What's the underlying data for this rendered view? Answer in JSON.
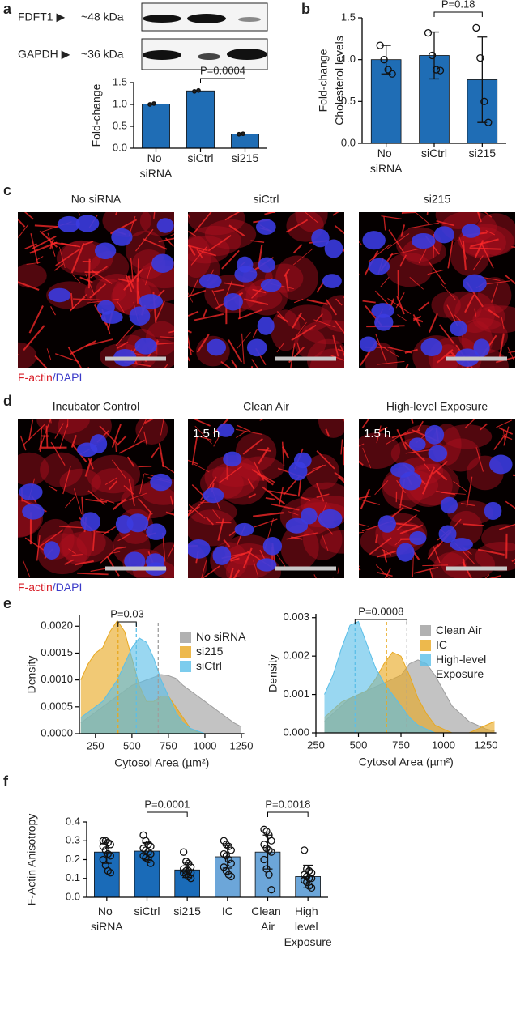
{
  "panel_labels": [
    "a",
    "b",
    "c",
    "d",
    "e",
    "f"
  ],
  "blot": [
    {
      "protein": "FDFT1 ▶",
      "size": "~48 kDa"
    },
    {
      "protein": "GAPDH ▶",
      "size": "~36 kDa"
    }
  ],
  "micrographs": {
    "c": {
      "titles": [
        "No siRNA",
        "siCtrl",
        "si215"
      ],
      "times": [
        null,
        null,
        null
      ],
      "stain": [
        "F-actin",
        "/DAPI"
      ]
    },
    "d": {
      "titles": [
        "Incubator Control",
        "Clean Air",
        "High-level Exposure"
      ],
      "times": [
        null,
        "1.5 h",
        "1.5 h"
      ],
      "stain": [
        "F-actin",
        "/DAPI"
      ]
    }
  },
  "chart_data": [
    {
      "type": "bar",
      "ylabel": "Fold-change",
      "categories": [
        "No siRNA",
        "siCtrl",
        "si215"
      ],
      "values": [
        1.01,
        1.31,
        0.325
      ],
      "color": "#1f6db5",
      "points": [
        [
          1.0,
          1.02
        ],
        [
          1.3,
          1.32
        ],
        [
          0.32,
          0.33
        ]
      ],
      "ylim": [
        0,
        1.5
      ],
      "yticks": [
        {
          "value": 0,
          "label": "0.0"
        },
        {
          "value": 0.5,
          "label": "0.5"
        },
        {
          "value": 1,
          "label": "1.0"
        },
        {
          "value": 1.5,
          "label": "1.5"
        }
      ],
      "annotations": [
        {
          "text": "P=0.0004",
          "between": [
            "siCtrl",
            "si215"
          ]
        }
      ]
    },
    {
      "type": "bar",
      "ylabel": [
        "Fold-change",
        "Cholesterol levels"
      ],
      "categories": [
        "No siRNA",
        "siCtrl",
        "si215"
      ],
      "values": [
        1.0,
        1.05,
        0.76
      ],
      "errors": [
        0.17,
        0.28,
        0.51
      ],
      "color": "#1f6db5",
      "points": [
        [
          1.17,
          1.0,
          0.88,
          0.83
        ],
        [
          1.32,
          1.05,
          0.88,
          0.87
        ],
        [
          1.38,
          1.02,
          0.5,
          0.25
        ]
      ],
      "ylim": [
        0,
        1.5
      ],
      "yticks": [
        {
          "value": 0,
          "label": "0.0"
        },
        {
          "value": 0.5,
          "label": "0.5"
        },
        {
          "value": 1,
          "label": "1.0"
        },
        {
          "value": 1.5,
          "label": "1.5"
        }
      ],
      "annotations": [
        {
          "text": "P=0.18",
          "between": [
            "siCtrl",
            "si215"
          ]
        }
      ]
    },
    {
      "type": "area",
      "xlabel": "Cytosol Area (µm²)",
      "ylabel": "Density",
      "x": [
        150,
        200,
        250,
        300,
        350,
        400,
        450,
        500,
        550,
        600,
        650,
        700,
        750,
        800,
        850,
        900,
        950,
        1000,
        1050,
        1100,
        1150,
        1200,
        1250
      ],
      "series": [
        {
          "name": "No siRNA",
          "color": "#9e9e9e",
          "mean": 680,
          "values": [
            0.0002,
            0.0003,
            0.0004,
            0.0005,
            0.0006,
            0.0007,
            0.0008,
            0.0009,
            0.00095,
            0.001,
            0.00105,
            0.0011,
            0.00108,
            0.00103,
            0.0009,
            0.0008,
            0.0007,
            0.0006,
            0.0005,
            0.0004,
            0.0003,
            0.0002,
            0.00013
          ]
        },
        {
          "name": "si215",
          "color": "#e8a820",
          "mean": 405,
          "values": [
            0.001,
            0.0013,
            0.0015,
            0.0016,
            0.0019,
            0.0021,
            0.0019,
            0.0014,
            0.0009,
            0.0006,
            0.0006,
            0.0007,
            0.0007,
            0.0005,
            0.0003,
            0.0001,
            3e-05,
            0,
            0,
            0,
            0,
            0,
            0
          ]
        },
        {
          "name": "siCtrl",
          "color": "#5bbfe8",
          "mean": 530,
          "values": [
            0.0003,
            0.0004,
            0.0005,
            0.0006,
            0.0008,
            0.001,
            0.0013,
            0.0016,
            0.00178,
            0.0017,
            0.0014,
            0.001,
            0.0007,
            0.0004,
            0.0002,
            0.0001,
            5e-05,
            0,
            0,
            0,
            0,
            0,
            0
          ]
        }
      ],
      "xlim": [
        140,
        1270
      ],
      "xticks": [
        250,
        500,
        750,
        1000,
        1250
      ],
      "ylim": [
        0,
        0.0022
      ],
      "yticks": [
        {
          "value": 0,
          "label": "0.0000"
        },
        {
          "value": 0.0005,
          "label": "0.0005"
        },
        {
          "value": 0.001,
          "label": "0.0010"
        },
        {
          "value": 0.0015,
          "label": "0.0015"
        },
        {
          "value": 0.002,
          "label": "0.0020"
        }
      ],
      "legend": "upper right",
      "annotations": [
        {
          "text": "P=0.03",
          "between": [
            "si215",
            "siCtrl"
          ]
        }
      ]
    },
    {
      "type": "area",
      "xlabel": "Cytosol Area (µm²)",
      "ylabel": "Density",
      "x": [
        300,
        350,
        400,
        450,
        500,
        550,
        600,
        650,
        700,
        750,
        800,
        850,
        900,
        950,
        1000,
        1050,
        1100,
        1150,
        1200,
        1250,
        1300
      ],
      "series": [
        {
          "name": "Clean Air",
          "color": "#9e9e9e",
          "mean": 785,
          "values": [
            0.0003,
            0.0005,
            0.0007,
            0.0009,
            0.001,
            0.0011,
            0.0012,
            0.0013,
            0.0014,
            0.0015,
            0.0018,
            0.0019,
            0.0018,
            0.0015,
            0.0011,
            0.0007,
            0.0005,
            0.0003,
            0.0002,
            0.0001,
            5e-05
          ]
        },
        {
          "name": "IC",
          "color": "#e8a820",
          "mean": 665,
          "values": [
            0.0004,
            0.0006,
            0.0008,
            0.0009,
            0.001,
            0.0011,
            0.0014,
            0.0018,
            0.0021,
            0.002,
            0.0015,
            0.0009,
            0.0005,
            0.0002,
            0.0001,
            0,
            0,
            0,
            0.0001,
            0.0002,
            0.0003
          ]
        },
        {
          "name": "High-level Exposure",
          "color": "#5bbfe8",
          "mean": 480,
          "values": [
            0.001,
            0.0015,
            0.0022,
            0.0028,
            0.0029,
            0.0023,
            0.0017,
            0.0013,
            0.001,
            0.0007,
            0.0004,
            0.0002,
            0.0001,
            0,
            0,
            0,
            0,
            0,
            0,
            0,
            0
          ]
        }
      ],
      "xlim": [
        250,
        1310
      ],
      "xticks": [
        250,
        500,
        750,
        1000,
        1250
      ],
      "ylim": [
        0,
        0.0031
      ],
      "yticks": [
        {
          "value": 0,
          "label": "0.000"
        },
        {
          "value": 0.001,
          "label": "0.001"
        },
        {
          "value": 0.002,
          "label": "0.002"
        },
        {
          "value": 0.003,
          "label": "0.003"
        }
      ],
      "legend": "upper right",
      "annotations": [
        {
          "text": "P=0.0008",
          "between": [
            "High-level Exposure",
            "Clean Air"
          ]
        }
      ]
    },
    {
      "type": "bar",
      "ylabel": "F-Actin Anisotropy",
      "categories": [
        "No siRNA",
        "siCtrl",
        "si215",
        "IC",
        "Clean Air",
        "High level Exposure"
      ],
      "values": [
        0.24,
        0.245,
        0.145,
        0.215,
        0.24,
        0.11
      ],
      "errors": [
        0.06,
        0.045,
        0.04,
        0.06,
        0.09,
        0.06
      ],
      "colors": [
        "#1a6bb8",
        "#1a6bb8",
        "#1a6bb8",
        "#6ca6d9",
        "#6ca6d9",
        "#6ca6d9"
      ],
      "points": [
        [
          0.3,
          0.3,
          0.29,
          0.28,
          0.27,
          0.25,
          0.23,
          0.22,
          0.2,
          0.17,
          0.14,
          0.13
        ],
        [
          0.33,
          0.3,
          0.28,
          0.27,
          0.26,
          0.25,
          0.24,
          0.23,
          0.22,
          0.21,
          0.2,
          0.18
        ],
        [
          0.24,
          0.19,
          0.18,
          0.16,
          0.15,
          0.14,
          0.14,
          0.13,
          0.13,
          0.12,
          0.11,
          0.1
        ],
        [
          0.3,
          0.28,
          0.27,
          0.25,
          0.23,
          0.22,
          0.2,
          0.18,
          0.16,
          0.14,
          0.12,
          0.11
        ],
        [
          0.36,
          0.35,
          0.33,
          0.3,
          0.28,
          0.26,
          0.25,
          0.24,
          0.2,
          0.15,
          0.12,
          0.04
        ],
        [
          0.25,
          0.15,
          0.14,
          0.13,
          0.12,
          0.11,
          0.1,
          0.1,
          0.09,
          0.08,
          0.06,
          0.05
        ]
      ],
      "ylim": [
        0,
        0.4
      ],
      "yticks": [
        {
          "value": 0,
          "label": "0.0"
        },
        {
          "value": 0.1,
          "label": "0.1"
        },
        {
          "value": 0.2,
          "label": "0.2"
        },
        {
          "value": 0.3,
          "label": "0.3"
        },
        {
          "value": 0.4,
          "label": "0.4"
        }
      ],
      "annotations": [
        {
          "text": "P=0.0001",
          "between": [
            "siCtrl",
            "si215"
          ]
        },
        {
          "text": "P=0.0018",
          "between": [
            "Clean Air",
            "High level Exposure"
          ]
        }
      ]
    }
  ]
}
